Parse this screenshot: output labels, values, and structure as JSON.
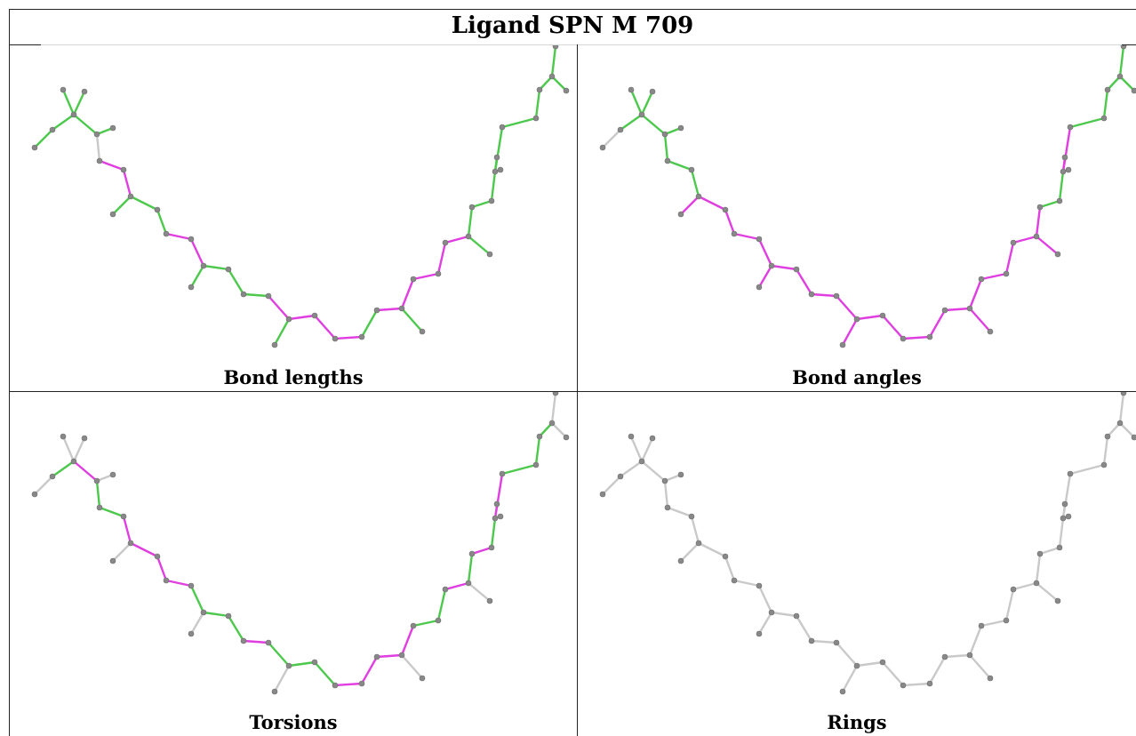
{
  "title": "Ligand SPN M 709",
  "colors": {
    "green": "#4cc94c",
    "magenta": "#e03ee0",
    "grey": "#c9c9c9",
    "atom": "#888888"
  },
  "panels": [
    {
      "caption": "Bond lengths"
    },
    {
      "caption": "Bond angles"
    },
    {
      "caption": "Torsions"
    },
    {
      "caption": "Rings"
    }
  ]
}
